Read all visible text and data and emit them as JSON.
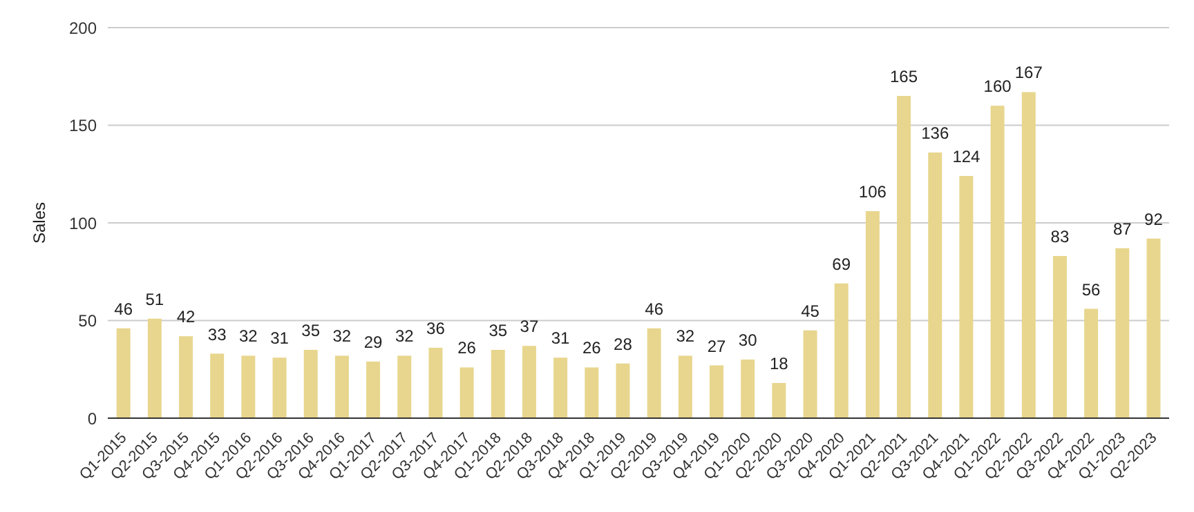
{
  "chart_data": {
    "type": "bar",
    "ylabel": "Sales",
    "categories": [
      "Q1-2015",
      "Q2-2015",
      "Q3-2015",
      "Q4-2015",
      "Q1-2016",
      "Q2-2016",
      "Q3-2016",
      "Q4-2016",
      "Q1-2017",
      "Q2-2017",
      "Q3-2017",
      "Q4-2017",
      "Q1-2018",
      "Q2-2018",
      "Q3-2018",
      "Q4-2018",
      "Q1-2019",
      "Q2-2019",
      "Q3-2019",
      "Q4-2019",
      "Q1-2020",
      "Q2-2020",
      "Q3-2020",
      "Q4-2020",
      "Q1-2021",
      "Q2-2021",
      "Q3-2021",
      "Q4-2021",
      "Q1-2022",
      "Q2-2022",
      "Q3-2022",
      "Q4-2022",
      "Q1-2023",
      "Q2-2023"
    ],
    "values": [
      46,
      51,
      42,
      33,
      32,
      31,
      35,
      32,
      29,
      32,
      36,
      26,
      35,
      37,
      31,
      26,
      28,
      46,
      32,
      27,
      30,
      18,
      45,
      69,
      106,
      165,
      136,
      124,
      160,
      167,
      83,
      56,
      87,
      92
    ],
    "color": "#e8d68e",
    "ylim": [
      0,
      200
    ],
    "yticks": [
      0,
      50,
      100,
      150,
      200
    ],
    "grid": "y",
    "data_labels": true
  }
}
